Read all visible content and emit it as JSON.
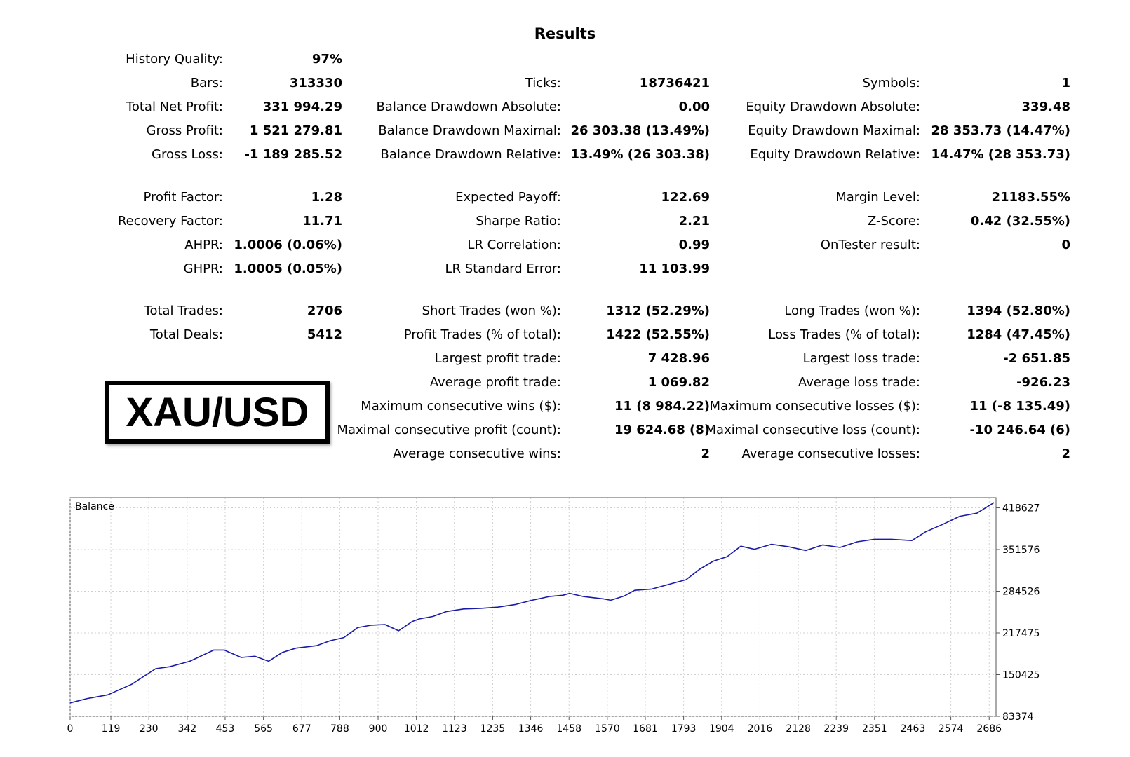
{
  "header": {
    "title": "Results"
  },
  "symbol_badge": "XAU/USD",
  "history_quality": {
    "label": "History Quality:",
    "value": "97%"
  },
  "rows_block1": [
    [
      {
        "label": "Bars:",
        "value": "313330"
      },
      {
        "label": "Ticks:",
        "value": "18736421"
      },
      {
        "label": "Symbols:",
        "value": "1"
      }
    ],
    [
      {
        "label": "Total Net Profit:",
        "value": "331 994.29"
      },
      {
        "label": "Balance Drawdown Absolute:",
        "value": "0.00"
      },
      {
        "label": "Equity Drawdown Absolute:",
        "value": "339.48"
      }
    ],
    [
      {
        "label": "Gross Profit:",
        "value": "1 521 279.81"
      },
      {
        "label": "Balance Drawdown Maximal:",
        "value": "26 303.38 (13.49%)"
      },
      {
        "label": "Equity Drawdown Maximal:",
        "value": "28 353.73 (14.47%)"
      }
    ],
    [
      {
        "label": "Gross Loss:",
        "value": "-1 189 285.52"
      },
      {
        "label": "Balance Drawdown Relative:",
        "value": "13.49% (26 303.38)"
      },
      {
        "label": "Equity Drawdown Relative:",
        "value": "14.47% (28 353.73)"
      }
    ]
  ],
  "rows_block2": [
    [
      {
        "label": "Profit Factor:",
        "value": "1.28"
      },
      {
        "label": "Expected Payoff:",
        "value": "122.69"
      },
      {
        "label": "Margin Level:",
        "value": "21183.55%"
      }
    ],
    [
      {
        "label": "Recovery Factor:",
        "value": "11.71"
      },
      {
        "label": "Sharpe Ratio:",
        "value": "2.21"
      },
      {
        "label": "Z-Score:",
        "value": "0.42 (32.55%)"
      }
    ],
    [
      {
        "label": "AHPR:",
        "value": "1.0006 (0.06%)"
      },
      {
        "label": "LR Correlation:",
        "value": "0.99"
      },
      {
        "label": "OnTester result:",
        "value": "0"
      }
    ],
    [
      {
        "label": "GHPR:",
        "value": "1.0005 (0.05%)"
      },
      {
        "label": "LR Standard Error:",
        "value": "11 103.99"
      },
      null
    ]
  ],
  "rows_block3": [
    [
      {
        "label": "Total Trades:",
        "value": "2706"
      },
      {
        "label": "Short Trades (won %):",
        "value": "1312 (52.29%)"
      },
      {
        "label": "Long Trades (won %):",
        "value": "1394 (52.80%)"
      }
    ],
    [
      {
        "label": "Total Deals:",
        "value": "5412"
      },
      {
        "label": "Profit Trades (% of total):",
        "value": "1422 (52.55%)"
      },
      {
        "label": "Loss Trades (% of total):",
        "value": "1284 (47.45%)"
      }
    ],
    [
      null,
      {
        "label": "Largest profit trade:",
        "value": "7 428.96"
      },
      {
        "label": "Largest loss trade:",
        "value": "-2 651.85"
      }
    ],
    [
      null,
      {
        "label": "Average profit trade:",
        "value": "1 069.82"
      },
      {
        "label": "Average loss trade:",
        "value": "-926.23"
      }
    ],
    [
      null,
      {
        "label": "Maximum consecutive wins ($):",
        "value": "11 (8 984.22)"
      },
      {
        "label": "Maximum consecutive losses ($):",
        "value": "11 (-8 135.49)"
      }
    ],
    [
      null,
      {
        "label": "Maximal consecutive profit (count):",
        "value": "19 624.68 (8)"
      },
      {
        "label": "Maximal consecutive loss (count):",
        "value": "-10 246.64 (6)"
      }
    ],
    [
      null,
      {
        "label": "Average consecutive wins:",
        "value": "2"
      },
      {
        "label": "Average consecutive losses:",
        "value": "2"
      }
    ]
  ],
  "chart_data": {
    "type": "line",
    "title": "Balance",
    "xlabel": "",
    "ylabel": "",
    "grid": true,
    "line_color": "#1a1aa8",
    "xlim": [
      0,
      2706
    ],
    "ylim": [
      83374,
      435000
    ],
    "x_ticks": [
      0,
      119,
      230,
      342,
      453,
      565,
      677,
      788,
      900,
      1012,
      1123,
      1235,
      1346,
      1458,
      1570,
      1681,
      1793,
      1904,
      2016,
      2128,
      2239,
      2351,
      2463,
      2574,
      2686
    ],
    "y_ticks": [
      83374,
      150425,
      217475,
      284526,
      351576,
      418627
    ],
    "series": [
      {
        "name": "Balance",
        "x": [
          0,
          50,
          110,
          180,
          250,
          290,
          350,
          420,
          450,
          500,
          540,
          580,
          620,
          660,
          720,
          760,
          800,
          840,
          880,
          920,
          960,
          1000,
          1020,
          1060,
          1100,
          1150,
          1200,
          1250,
          1300,
          1350,
          1400,
          1440,
          1460,
          1500,
          1560,
          1580,
          1620,
          1650,
          1700,
          1760,
          1800,
          1840,
          1880,
          1920,
          1960,
          2000,
          2050,
          2100,
          2150,
          2200,
          2250,
          2300,
          2350,
          2400,
          2460,
          2500,
          2550,
          2600,
          2650,
          2700
        ],
        "y": [
          105000,
          112000,
          118000,
          135000,
          160000,
          163000,
          172000,
          190000,
          190000,
          178000,
          180000,
          172000,
          186000,
          193000,
          197000,
          205000,
          210000,
          226000,
          230000,
          231000,
          221000,
          236000,
          240000,
          244000,
          252000,
          256000,
          257000,
          259000,
          263000,
          270000,
          276000,
          278000,
          281000,
          276000,
          272000,
          270000,
          277000,
          286000,
          288000,
          297000,
          303000,
          320000,
          333000,
          340000,
          357000,
          352000,
          360000,
          356000,
          350000,
          359000,
          355000,
          364000,
          368000,
          368000,
          366000,
          380000,
          392000,
          405000,
          410000,
          427000
        ]
      }
    ]
  }
}
